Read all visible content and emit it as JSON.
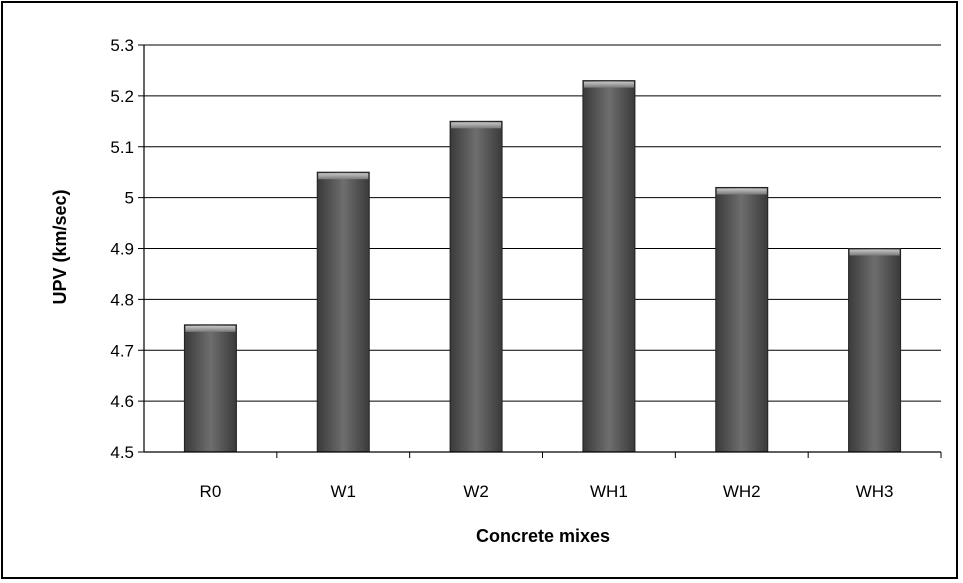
{
  "chart_data": {
    "type": "bar",
    "title": "",
    "xlabel": "Concrete mixes",
    "ylabel": "UPV (km/sec)",
    "categories": [
      "R0",
      "W1",
      "W2",
      "WH1",
      "WH2",
      "WH3"
    ],
    "values": [
      4.75,
      5.05,
      5.15,
      5.23,
      5.02,
      4.9
    ],
    "ylim": [
      4.5,
      5.3
    ],
    "yticks": [
      "4.5",
      "4.6",
      "4.7",
      "4.8",
      "4.9",
      "5",
      "5.1",
      "5.2",
      "5.3"
    ],
    "grid": true,
    "legend": "none",
    "bar_color": "#5a5a5a"
  }
}
